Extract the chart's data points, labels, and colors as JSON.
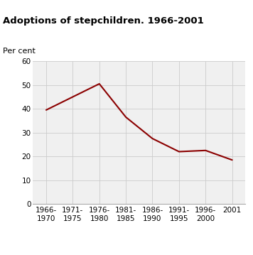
{
  "title": "Adoptions of stepchildren. 1966-2001",
  "ylabel": "Per cent",
  "x_labels": [
    "1966-\n1970",
    "1971-\n1975",
    "1976-\n1980",
    "1981-\n1985",
    "1986-\n1990",
    "1991-\n1995",
    "1996-\n2000",
    "2001"
  ],
  "x_positions": [
    0,
    1,
    2,
    3,
    4,
    5,
    6,
    7
  ],
  "y_values": [
    39.5,
    45.0,
    50.5,
    36.5,
    27.5,
    22.0,
    22.5,
    18.5
  ],
  "line_color": "#8B0000",
  "ylim": [
    0,
    60
  ],
  "yticks": [
    0,
    10,
    20,
    30,
    40,
    50,
    60
  ],
  "grid_color": "#cccccc",
  "title_color": "#000000",
  "title_fontsize": 9.5,
  "label_fontsize": 8,
  "tick_fontsize": 7.5,
  "plot_bg_color": "#f0f0f0",
  "teal_color": "#4ab8b8",
  "fig_bg": "#ffffff"
}
